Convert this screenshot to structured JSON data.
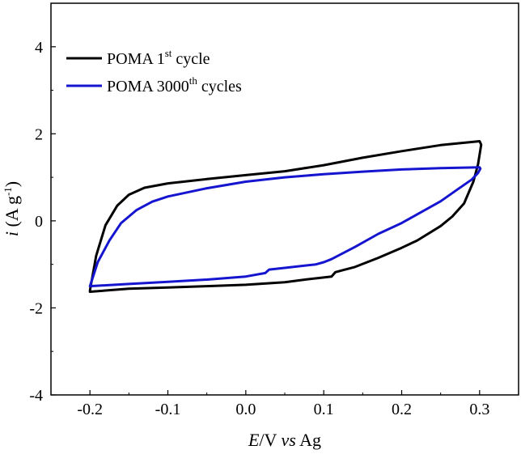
{
  "chart_data": {
    "type": "line",
    "xlabel": {
      "italic": "E",
      "rest1": "/V ",
      "italic2": "vs",
      "rest2": " Ag"
    },
    "ylabel": {
      "italic": "i",
      "rest": " (A g",
      "sup": "-1",
      "close": ")"
    },
    "xlim": [
      -0.25,
      0.35
    ],
    "ylim": [
      -4,
      5
    ],
    "x_ticks": [
      -0.2,
      -0.1,
      0.0,
      0.1,
      0.2,
      0.3
    ],
    "x_tick_labels": [
      "-0.2",
      "-0.1",
      "0.0",
      "0.1",
      "0.2",
      "0.3"
    ],
    "y_ticks": [
      -4,
      -2,
      0,
      2,
      4
    ],
    "y_tick_labels": [
      "-4",
      "-2",
      "0",
      "2",
      "4"
    ],
    "grid": false,
    "legend_position": "top-left",
    "series": [
      {
        "name": "POMA 1st cycle",
        "legend": {
          "base": "POMA 1",
          "sup": "st",
          "tail": " cycle"
        },
        "color": "#000000",
        "points": [
          [
            -0.2,
            -1.6
          ],
          [
            -0.192,
            -0.8
          ],
          [
            -0.18,
            -0.1
          ],
          [
            -0.165,
            0.35
          ],
          [
            -0.15,
            0.6
          ],
          [
            -0.13,
            0.76
          ],
          [
            -0.1,
            0.86
          ],
          [
            -0.05,
            0.96
          ],
          [
            0.0,
            1.05
          ],
          [
            0.05,
            1.14
          ],
          [
            0.1,
            1.28
          ],
          [
            0.15,
            1.45
          ],
          [
            0.2,
            1.6
          ],
          [
            0.25,
            1.74
          ],
          [
            0.3,
            1.83
          ],
          [
            0.302,
            1.75
          ],
          [
            0.298,
            1.3
          ],
          [
            0.292,
            0.9
          ],
          [
            0.28,
            0.4
          ],
          [
            0.265,
            0.1
          ],
          [
            0.25,
            -0.12
          ],
          [
            0.22,
            -0.45
          ],
          [
            0.2,
            -0.62
          ],
          [
            0.17,
            -0.85
          ],
          [
            0.14,
            -1.06
          ],
          [
            0.125,
            -1.13
          ],
          [
            0.115,
            -1.18
          ],
          [
            0.11,
            -1.28
          ],
          [
            0.08,
            -1.34
          ],
          [
            0.05,
            -1.41
          ],
          [
            0.0,
            -1.47
          ],
          [
            -0.05,
            -1.5
          ],
          [
            -0.1,
            -1.53
          ],
          [
            -0.15,
            -1.56
          ],
          [
            -0.2,
            -1.63
          ]
        ]
      },
      {
        "name": "POMA 3000th cycles",
        "legend": {
          "base": "POMA 3000",
          "sup": "th",
          "tail": " cycles"
        },
        "color": "#1515d0",
        "points": [
          [
            -0.2,
            -1.5
          ],
          [
            -0.19,
            -0.95
          ],
          [
            -0.175,
            -0.45
          ],
          [
            -0.16,
            -0.05
          ],
          [
            -0.14,
            0.25
          ],
          [
            -0.12,
            0.44
          ],
          [
            -0.1,
            0.56
          ],
          [
            -0.05,
            0.75
          ],
          [
            0.0,
            0.9
          ],
          [
            0.05,
            1.0
          ],
          [
            0.1,
            1.07
          ],
          [
            0.15,
            1.13
          ],
          [
            0.2,
            1.18
          ],
          [
            0.25,
            1.21
          ],
          [
            0.3,
            1.23
          ],
          [
            0.301,
            1.2
          ],
          [
            0.298,
            1.1
          ],
          [
            0.29,
            0.95
          ],
          [
            0.27,
            0.7
          ],
          [
            0.25,
            0.45
          ],
          [
            0.22,
            0.15
          ],
          [
            0.2,
            -0.05
          ],
          [
            0.17,
            -0.3
          ],
          [
            0.14,
            -0.6
          ],
          [
            0.11,
            -0.88
          ],
          [
            0.1,
            -0.95
          ],
          [
            0.09,
            -1.0
          ],
          [
            0.05,
            -1.08
          ],
          [
            0.03,
            -1.12
          ],
          [
            0.025,
            -1.2
          ],
          [
            0.0,
            -1.28
          ],
          [
            -0.05,
            -1.35
          ],
          [
            -0.1,
            -1.4
          ],
          [
            -0.15,
            -1.45
          ],
          [
            -0.2,
            -1.5
          ]
        ]
      }
    ]
  }
}
